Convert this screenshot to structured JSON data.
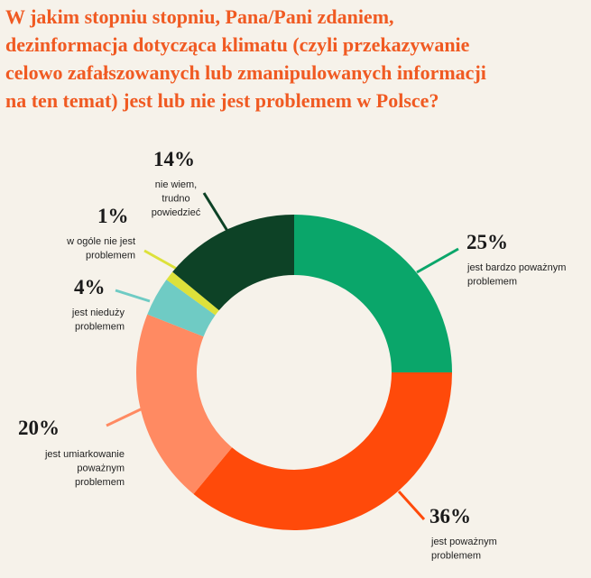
{
  "chart_data": {
    "type": "donut",
    "title": [
      "W jakim stopniu stopniu, Pana/Pani zdaniem,",
      "dezinformacja dotycząca klimatu (czyli przekazywanie",
      "celowo zafałszowanych lub zmanipulowanych informacji",
      "na ten temat) jest lub nie jest problemem w Polsce?"
    ],
    "categories": [
      [
        "jest bardzo poważnym",
        "problemem"
      ],
      [
        "jest poważnym",
        "problemem"
      ],
      [
        "jest umiarkowanie",
        "poważnym",
        "problemem"
      ],
      [
        "jest nieduży",
        "problemem"
      ],
      [
        "w ogóle nie jest",
        "problemem"
      ],
      [
        "nie wiem,",
        "trudno",
        "powiedzieć"
      ]
    ],
    "values": [
      25,
      36,
      20,
      4,
      1,
      14
    ],
    "value_labels": [
      "25%",
      "36%",
      "20%",
      "4%",
      "1%",
      "14%"
    ],
    "colors": [
      "#0aa66a",
      "#ff4a0a",
      "#ff8a62",
      "#6fcbc4",
      "#dde13a",
      "#0d4226"
    ]
  }
}
